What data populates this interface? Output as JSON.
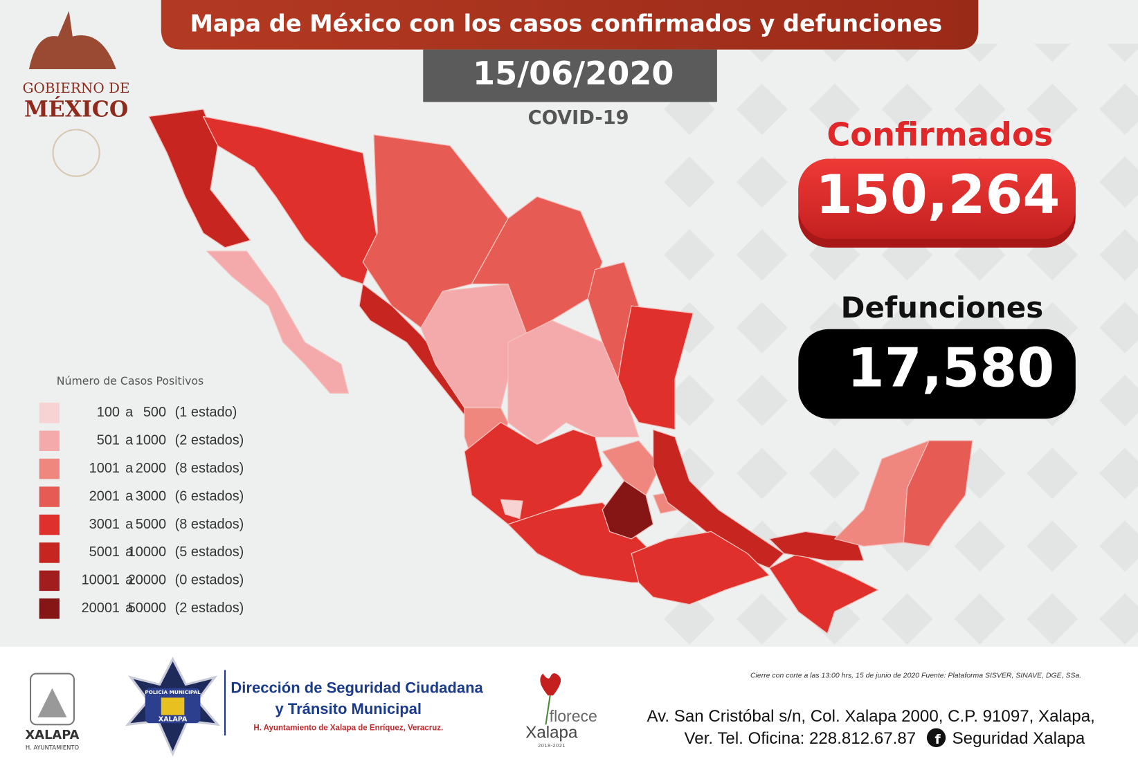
{
  "header": {
    "title": "Mapa de México con los casos confirmados y defunciones",
    "date": "15/06/2020",
    "subtitle": "COVID-19"
  },
  "government_logo": {
    "line1": "GOBIERNO DE",
    "line2": "MÉXICO"
  },
  "stats": {
    "confirmed": {
      "label": "Confirmados",
      "value": "150,264"
    },
    "deaths": {
      "label": "Defunciones",
      "value": "17,580"
    }
  },
  "legend": {
    "title": "Número de Casos Positivos",
    "connector": "a",
    "items": [
      {
        "min": 100,
        "max": 500,
        "count": "(1 estado)",
        "color": "#f8d3d3"
      },
      {
        "min": 501,
        "max": 1000,
        "count": "(2 estados)",
        "color": "#f4aaaa"
      },
      {
        "min": 1001,
        "max": 2000,
        "count": "(8 estados)",
        "color": "#ef877f"
      },
      {
        "min": 2001,
        "max": 3000,
        "count": "(6 estados)",
        "color": "#e65c55"
      },
      {
        "min": 3001,
        "max": 5000,
        "count": "(8 estados)",
        "color": "#df302b"
      },
      {
        "min": 5001,
        "max": 10000,
        "count": "(5 estados)",
        "color": "#c62520"
      },
      {
        "min": 10001,
        "max": 20000,
        "count": "(0 estados)",
        "color": "#a21d1d"
      },
      {
        "min": 20001,
        "max": 50000,
        "count": "(2 estados)",
        "color": "#861616"
      }
    ]
  },
  "footer": {
    "note": "Cierre con corte a las 13:00 hrs, 15 de junio de 2020  Fuente: Plataforma SISVER, SINAVE, DGE, SSa.",
    "xalapa_logo": {
      "name": "XALAPA",
      "sub": "H. AYUNTAMIENTO"
    },
    "police_badge": {
      "top": "POLICÍA MUNICIPAL",
      "bottom": "XALAPA"
    },
    "organization": {
      "line1": "Dirección de Seguridad Ciudadana",
      "line2": "y Tránsito Municipal",
      "line3": "H. Ayuntamiento de Xalapa de Enríquez, Veracruz."
    },
    "florece_logo": {
      "word": "florece",
      "city": "Xalapa",
      "years": "2018-2021"
    },
    "address": {
      "line1": "Av. San Cristóbal s/n, Col. Xalapa 2000, C.P. 91097, Xalapa,",
      "line2": "Ver. Tel. Oficina: 228.812.67.87",
      "social": "Seguridad Xalapa"
    }
  }
}
